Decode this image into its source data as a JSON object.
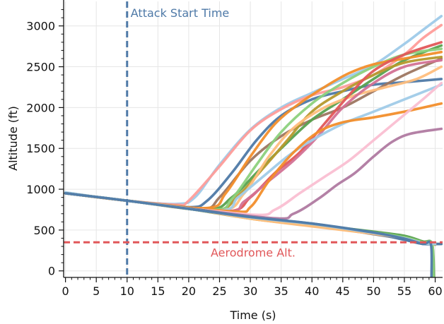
{
  "chart_data": {
    "type": "line",
    "title": "",
    "xlabel": "Time (s)",
    "ylabel": "Altitude (ft)",
    "xlim": [
      -0.3,
      61.2
    ],
    "ylim": [
      -80,
      3300
    ],
    "xticks": [
      0,
      5,
      10,
      15,
      20,
      25,
      30,
      35,
      40,
      45,
      50,
      55,
      60
    ],
    "yticks": [
      0,
      500,
      1000,
      1500,
      2000,
      2500,
      3000
    ],
    "grid": true,
    "annotations": [
      {
        "text": "Attack Start Time",
        "x": 10,
        "color": "#4e79a7",
        "style": "vertical-dashed"
      },
      {
        "text": "Aerodrome Alt.",
        "y": 350,
        "color": "#e15759",
        "style": "horizontal-dashed"
      }
    ],
    "series": [
      {
        "color": "#9ecae9",
        "points": [
          [
            0,
            960
          ],
          [
            10,
            860
          ],
          [
            18,
            820
          ],
          [
            21,
            900
          ],
          [
            25,
            1300
          ],
          [
            30,
            1730
          ],
          [
            35,
            2000
          ],
          [
            40,
            2180
          ],
          [
            45,
            2350
          ],
          [
            50,
            2520
          ],
          [
            55,
            2780
          ],
          [
            58,
            2950
          ],
          [
            61,
            3120
          ]
        ]
      },
      {
        "color": "#ff9d9a",
        "points": [
          [
            0,
            950
          ],
          [
            10,
            860
          ],
          [
            18,
            810
          ],
          [
            20,
            860
          ],
          [
            25,
            1280
          ],
          [
            30,
            1720
          ],
          [
            35,
            1980
          ],
          [
            40,
            2150
          ],
          [
            45,
            2250
          ],
          [
            50,
            2400
          ],
          [
            55,
            2650
          ],
          [
            58,
            2850
          ],
          [
            61,
            3010
          ]
        ]
      },
      {
        "color": "#4e79a7",
        "points": [
          [
            0,
            950
          ],
          [
            10,
            860
          ],
          [
            20,
            780
          ],
          [
            23,
            860
          ],
          [
            27,
            1200
          ],
          [
            31,
            1600
          ],
          [
            35,
            1900
          ],
          [
            40,
            2100
          ],
          [
            45,
            2200
          ],
          [
            50,
            2280
          ],
          [
            55,
            2310
          ],
          [
            61,
            2350
          ]
        ]
      },
      {
        "color": "#9d7660",
        "points": [
          [
            0,
            950
          ],
          [
            10,
            860
          ],
          [
            22,
            760
          ],
          [
            25,
            900
          ],
          [
            30,
            1350
          ],
          [
            35,
            1650
          ],
          [
            40,
            1850
          ],
          [
            45,
            2000
          ],
          [
            50,
            2200
          ],
          [
            55,
            2400
          ],
          [
            61,
            2600
          ]
        ]
      },
      {
        "color": "#59a14f",
        "points": [
          [
            0,
            950
          ],
          [
            10,
            860
          ],
          [
            23,
            750
          ],
          [
            27,
            900
          ],
          [
            31,
            1200
          ],
          [
            35,
            1500
          ],
          [
            40,
            1850
          ],
          [
            45,
            2100
          ],
          [
            50,
            2350
          ],
          [
            55,
            2580
          ],
          [
            61,
            2760
          ]
        ]
      },
      {
        "color": "#b6992d",
        "points": [
          [
            0,
            950
          ],
          [
            10,
            860
          ],
          [
            24,
            740
          ],
          [
            28,
            920
          ],
          [
            32,
            1250
          ],
          [
            36,
            1600
          ],
          [
            40,
            1950
          ],
          [
            45,
            2200
          ],
          [
            50,
            2400
          ],
          [
            55,
            2550
          ],
          [
            61,
            2620
          ]
        ]
      },
      {
        "color": "#8cd17d",
        "points": [
          [
            0,
            950
          ],
          [
            10,
            860
          ],
          [
            24,
            750
          ],
          [
            27,
            880
          ],
          [
            31,
            1300
          ],
          [
            35,
            1700
          ],
          [
            40,
            2050
          ],
          [
            45,
            2300
          ],
          [
            50,
            2500
          ],
          [
            55,
            2650
          ],
          [
            61,
            2720
          ]
        ]
      },
      {
        "color": "#f28e2b",
        "points": [
          [
            0,
            950
          ],
          [
            10,
            860
          ],
          [
            23,
            770
          ],
          [
            26,
            950
          ],
          [
            30,
            1400
          ],
          [
            34,
            1800
          ],
          [
            38,
            2050
          ],
          [
            42,
            2250
          ],
          [
            46,
            2420
          ],
          [
            50,
            2530
          ],
          [
            55,
            2600
          ],
          [
            61,
            2680
          ]
        ]
      },
      {
        "color": "#ffbe7d",
        "points": [
          [
            0,
            950
          ],
          [
            10,
            860
          ],
          [
            25,
            740
          ],
          [
            29,
            950
          ],
          [
            33,
            1400
          ],
          [
            37,
            1750
          ],
          [
            42,
            2000
          ],
          [
            47,
            2150
          ],
          [
            52,
            2250
          ],
          [
            57,
            2350
          ],
          [
            61,
            2500
          ]
        ]
      },
      {
        "color": "#e15759",
        "points": [
          [
            0,
            950
          ],
          [
            10,
            860
          ],
          [
            26,
            730
          ],
          [
            30,
            900
          ],
          [
            34,
            1200
          ],
          [
            38,
            1450
          ],
          [
            42,
            1800
          ],
          [
            46,
            2150
          ],
          [
            50,
            2450
          ],
          [
            55,
            2650
          ],
          [
            61,
            2800
          ]
        ]
      },
      {
        "color": "#d37295",
        "points": [
          [
            0,
            950
          ],
          [
            10,
            860
          ],
          [
            26,
            730
          ],
          [
            29,
            850
          ],
          [
            33,
            1100
          ],
          [
            37,
            1350
          ],
          [
            41,
            1650
          ],
          [
            45,
            2000
          ],
          [
            50,
            2300
          ],
          [
            55,
            2500
          ],
          [
            61,
            2580
          ]
        ]
      },
      {
        "color": "#a0cbe8",
        "points": [
          [
            0,
            950
          ],
          [
            10,
            860
          ],
          [
            25,
            740
          ],
          [
            28,
            900
          ],
          [
            32,
            1150
          ],
          [
            36,
            1400
          ],
          [
            40,
            1600
          ],
          [
            45,
            1800
          ],
          [
            50,
            1950
          ],
          [
            55,
            2100
          ],
          [
            61,
            2280
          ]
        ]
      },
      {
        "color": "#f28e2b",
        "points": [
          [
            0,
            950
          ],
          [
            10,
            860
          ],
          [
            27,
            730
          ],
          [
            30,
            780
          ],
          [
            33,
            1100
          ],
          [
            37,
            1450
          ],
          [
            41,
            1700
          ],
          [
            45,
            1820
          ],
          [
            50,
            1880
          ],
          [
            55,
            1950
          ],
          [
            61,
            2050
          ]
        ]
      },
      {
        "color": "#fabfd2",
        "points": [
          [
            0,
            950
          ],
          [
            10,
            860
          ],
          [
            30,
            690
          ],
          [
            34,
            750
          ],
          [
            38,
            950
          ],
          [
            42,
            1150
          ],
          [
            46,
            1350
          ],
          [
            50,
            1600
          ],
          [
            54,
            1850
          ],
          [
            58,
            2100
          ],
          [
            61,
            2300
          ]
        ]
      },
      {
        "color": "#b07aa1",
        "points": [
          [
            0,
            950
          ],
          [
            10,
            860
          ],
          [
            33,
            650
          ],
          [
            37,
            700
          ],
          [
            41,
            880
          ],
          [
            44,
            1050
          ],
          [
            47,
            1200
          ],
          [
            50,
            1400
          ],
          [
            53,
            1580
          ],
          [
            56,
            1680
          ],
          [
            61,
            1740
          ]
        ]
      },
      {
        "color": "#79706e",
        "points": [
          [
            0,
            950
          ],
          [
            10,
            860
          ],
          [
            20,
            770
          ],
          [
            30,
            650
          ],
          [
            40,
            560
          ],
          [
            50,
            450
          ],
          [
            55,
            390
          ],
          [
            58,
            340
          ],
          [
            61,
            330
          ]
        ]
      },
      {
        "color": "#b6992d",
        "points": [
          [
            0,
            950
          ],
          [
            10,
            860
          ],
          [
            20,
            760
          ],
          [
            30,
            640
          ],
          [
            40,
            550
          ],
          [
            50,
            460
          ],
          [
            55,
            400
          ],
          [
            58,
            360
          ],
          [
            60,
            320
          ]
        ]
      },
      {
        "color": "#4e79a7",
        "points": [
          [
            0,
            950
          ],
          [
            10,
            860
          ],
          [
            20,
            760
          ],
          [
            30,
            660
          ],
          [
            40,
            580
          ],
          [
            45,
            520
          ],
          [
            50,
            460
          ],
          [
            55,
            380
          ],
          [
            58,
            330
          ],
          [
            61,
            330
          ]
        ]
      },
      {
        "color": "#59a14f",
        "points": [
          [
            0,
            950
          ],
          [
            10,
            860
          ],
          [
            20,
            760
          ],
          [
            30,
            650
          ],
          [
            40,
            570
          ],
          [
            50,
            480
          ],
          [
            55,
            430
          ],
          [
            58,
            360
          ],
          [
            59.5,
            330
          ],
          [
            59.8,
            -80
          ]
        ]
      },
      {
        "color": "#8cd17d",
        "points": [
          [
            0,
            950
          ],
          [
            10,
            860
          ],
          [
            20,
            760
          ],
          [
            30,
            650
          ],
          [
            40,
            560
          ],
          [
            50,
            470
          ],
          [
            55,
            410
          ],
          [
            58,
            350
          ],
          [
            59.5,
            330
          ],
          [
            59.7,
            -80
          ]
        ]
      },
      {
        "color": "#ffbe7d",
        "points": [
          [
            0,
            950
          ],
          [
            10,
            860
          ],
          [
            20,
            765
          ],
          [
            30,
            640
          ],
          [
            40,
            545
          ],
          [
            50,
            455
          ],
          [
            55,
            400
          ],
          [
            58,
            340
          ],
          [
            60,
            330
          ]
        ]
      },
      {
        "color": "#a0cbe8",
        "points": [
          [
            0,
            950
          ],
          [
            10,
            860
          ],
          [
            20,
            760
          ],
          [
            30,
            655
          ],
          [
            40,
            575
          ],
          [
            50,
            465
          ],
          [
            55,
            400
          ],
          [
            58,
            340
          ],
          [
            60,
            330
          ]
        ]
      },
      {
        "color": "#4e79a7",
        "points": [
          [
            0,
            950
          ],
          [
            10,
            860
          ],
          [
            20,
            760
          ],
          [
            30,
            660
          ],
          [
            40,
            580
          ],
          [
            50,
            470
          ],
          [
            55,
            395
          ],
          [
            58,
            330
          ],
          [
            59.3,
            330
          ],
          [
            59.4,
            -80
          ]
        ]
      }
    ]
  }
}
